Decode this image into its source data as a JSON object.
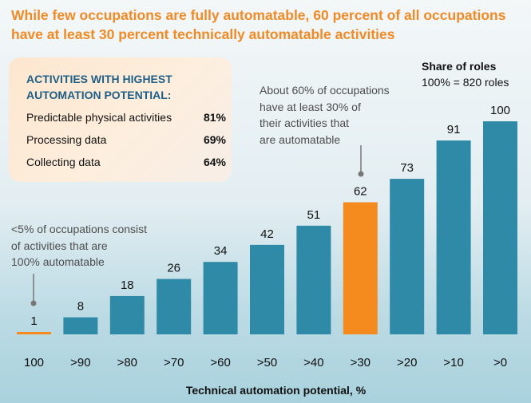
{
  "title": {
    "line1": "While few occupations are fully automatable, 60 percent of all occupations",
    "line2": "have at least 30 percent technically automatable activities"
  },
  "infobox": {
    "heading_line1": "ACTIVITIES WITH HIGHEST",
    "heading_line2": "AUTOMATION POTENTIAL:",
    "items": [
      {
        "label": "Predictable physical activities",
        "value": "81%"
      },
      {
        "label": "Processing data",
        "value": "69%"
      },
      {
        "label": "Collecting data",
        "value": "64%"
      }
    ]
  },
  "annotations": {
    "sixty": {
      "line1": "About 60% of occupations",
      "line2": "have at least 30% of",
      "line3": "their activities that",
      "line4": "are automatable"
    },
    "five": {
      "line1": "<5% of occupations consist",
      "line2": "of activities that are",
      "line3": "100% automatable"
    }
  },
  "share": {
    "title": "Share of roles",
    "subtitle": "100% = 820 roles"
  },
  "colors": {
    "bar": "#2e8aa6",
    "highlight": "#f58a1f",
    "title": "#f08a24",
    "heading": "#1f5f86"
  },
  "chart_data": {
    "type": "bar",
    "title": "While few occupations are fully automatable, 60 percent of all occupations have at least 30 percent technically automatable activities",
    "xlabel": "Technical automation potential, %",
    "ylabel": "Share of roles",
    "categories": [
      "100",
      ">90",
      ">80",
      ">70",
      ">60",
      ">50",
      ">40",
      ">30",
      ">20",
      ">10",
      ">0"
    ],
    "values": [
      1,
      8,
      18,
      26,
      34,
      42,
      51,
      62,
      73,
      91,
      100
    ],
    "highlighted": [
      "100",
      ">30"
    ],
    "ylim": [
      0,
      100
    ],
    "grid": false
  }
}
